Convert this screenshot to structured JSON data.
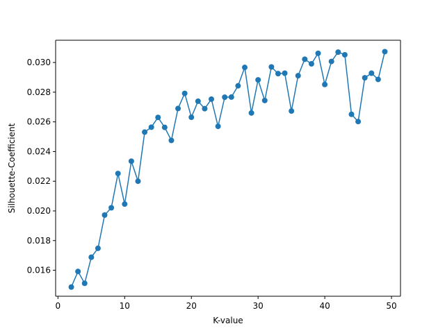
{
  "chart_data": {
    "type": "line",
    "title": "",
    "xlabel": "K-value",
    "ylabel": "Silhouette-Coefficient",
    "xlim": [
      -0.35,
      51.35
    ],
    "ylim": [
      0.01425,
      0.0315
    ],
    "xticks": [
      0,
      10,
      20,
      30,
      40,
      50
    ],
    "yticks": [
      0.016,
      0.018,
      0.02,
      0.022,
      0.024,
      0.026,
      0.028,
      0.03
    ],
    "xtick_labels": [
      "0",
      "10",
      "20",
      "30",
      "40",
      "50"
    ],
    "ytick_labels": [
      "0.016",
      "0.018",
      "0.020",
      "0.022",
      "0.024",
      "0.026",
      "0.028",
      "0.030"
    ],
    "grid": false,
    "legend": "none",
    "series": [
      {
        "color": "#1f77b4",
        "marker": "circle",
        "x": [
          2,
          3,
          4,
          5,
          6,
          7,
          8,
          9,
          10,
          11,
          12,
          13,
          14,
          15,
          16,
          17,
          18,
          19,
          20,
          21,
          22,
          23,
          24,
          25,
          26,
          27,
          28,
          29,
          30,
          31,
          32,
          33,
          34,
          35,
          36,
          37,
          38,
          39,
          40,
          41,
          42,
          43,
          44,
          45,
          46,
          47,
          48,
          49
        ],
        "y": [
          0.01487,
          0.01592,
          0.01512,
          0.01688,
          0.01748,
          0.01972,
          0.02021,
          0.02252,
          0.02046,
          0.02335,
          0.022,
          0.02531,
          0.02564,
          0.0263,
          0.02563,
          0.02475,
          0.0269,
          0.02792,
          0.02631,
          0.02739,
          0.02689,
          0.02753,
          0.0257,
          0.02766,
          0.02767,
          0.02843,
          0.02967,
          0.0266,
          0.02883,
          0.02744,
          0.0297,
          0.02925,
          0.02928,
          0.02673,
          0.02911,
          0.03022,
          0.02991,
          0.03062,
          0.02852,
          0.03007,
          0.0307,
          0.03052,
          0.02651,
          0.02602,
          0.02897,
          0.02928,
          0.02886,
          0.03073
        ]
      }
    ]
  }
}
